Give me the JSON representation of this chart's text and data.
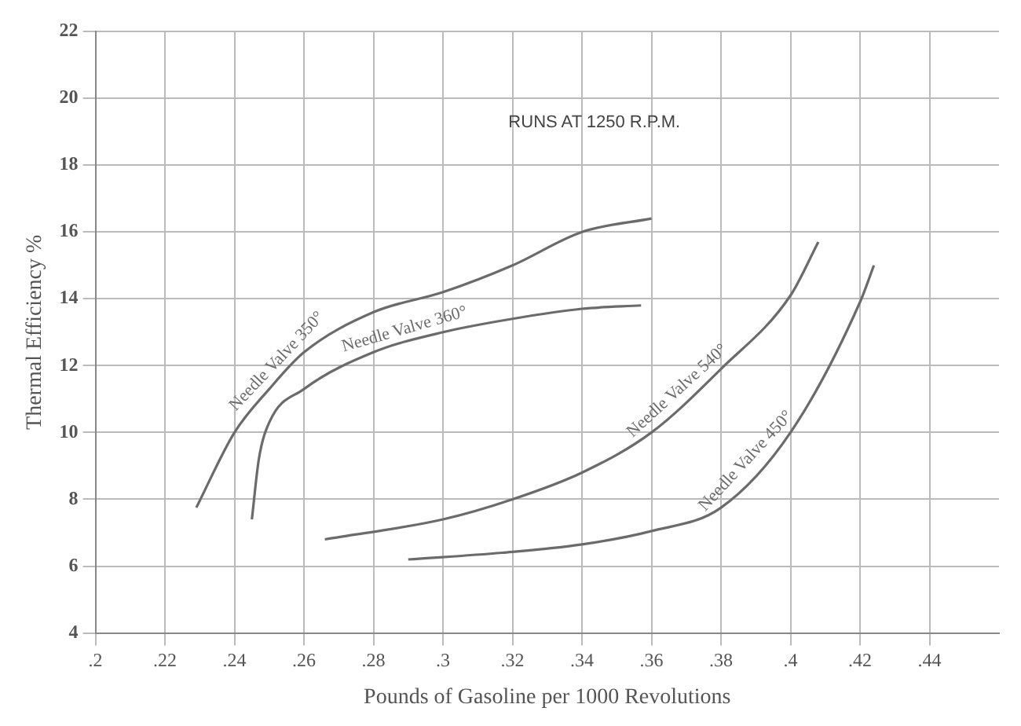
{
  "chart_data": {
    "type": "line",
    "xlabel": "Pounds of Gasoline per 1000 Revolutions",
    "ylabel": "Thermal Efficiency %",
    "annotations": [
      "RUNS AT 1250 R.P.M."
    ],
    "xlim": [
      0.2,
      0.46
    ],
    "ylim": [
      4,
      22
    ],
    "xticks": [
      {
        "value": 0.2,
        "label": ".2"
      },
      {
        "value": 0.22,
        "label": ".22"
      },
      {
        "value": 0.24,
        "label": ".24"
      },
      {
        "value": 0.26,
        "label": ".26"
      },
      {
        "value": 0.28,
        "label": ".28"
      },
      {
        "value": 0.3,
        "label": ".3"
      },
      {
        "value": 0.32,
        "label": ".32"
      },
      {
        "value": 0.34,
        "label": ".34"
      },
      {
        "value": 0.36,
        "label": ".36"
      },
      {
        "value": 0.38,
        "label": ".38"
      },
      {
        "value": 0.4,
        "label": ".4"
      },
      {
        "value": 0.42,
        "label": ".42"
      },
      {
        "value": 0.44,
        "label": ".44"
      }
    ],
    "yticks": [
      4,
      6,
      8,
      10,
      12,
      14,
      16,
      18,
      20,
      22
    ],
    "grid": true,
    "legend": false,
    "marker": "none",
    "line_style": "solid",
    "series": [
      {
        "name": "Needle Valve 350°",
        "color": "#6b6b6b",
        "x": [
          0.229,
          0.24,
          0.25,
          0.26,
          0.28,
          0.3,
          0.32,
          0.34,
          0.36
        ],
        "values": [
          7.75,
          10.0,
          11.3,
          12.4,
          13.6,
          14.2,
          15.0,
          16.0,
          16.4
        ]
      },
      {
        "name": "Needle Valve 360°",
        "color": "#6b6b6b",
        "x": [
          0.245,
          0.247,
          0.25,
          0.26,
          0.28,
          0.3,
          0.32,
          0.34,
          0.357
        ],
        "values": [
          7.4,
          9.2,
          10.3,
          11.3,
          12.4,
          13.0,
          13.4,
          13.7,
          13.8
        ]
      },
      {
        "name": "Needle Valve 540°",
        "color": "#6b6b6b",
        "x": [
          0.266,
          0.3,
          0.32,
          0.34,
          0.36,
          0.38,
          0.4,
          0.408
        ],
        "values": [
          6.8,
          7.4,
          8.0,
          8.8,
          10.0,
          11.9,
          14.1,
          15.7
        ]
      },
      {
        "name": "Needle Valve 450°",
        "color": "#6b6b6b",
        "x": [
          0.29,
          0.317,
          0.34,
          0.36,
          0.38,
          0.4,
          0.42,
          0.424
        ],
        "values": [
          6.2,
          6.4,
          6.65,
          7.05,
          7.75,
          10.0,
          13.9,
          15.0
        ]
      }
    ]
  }
}
